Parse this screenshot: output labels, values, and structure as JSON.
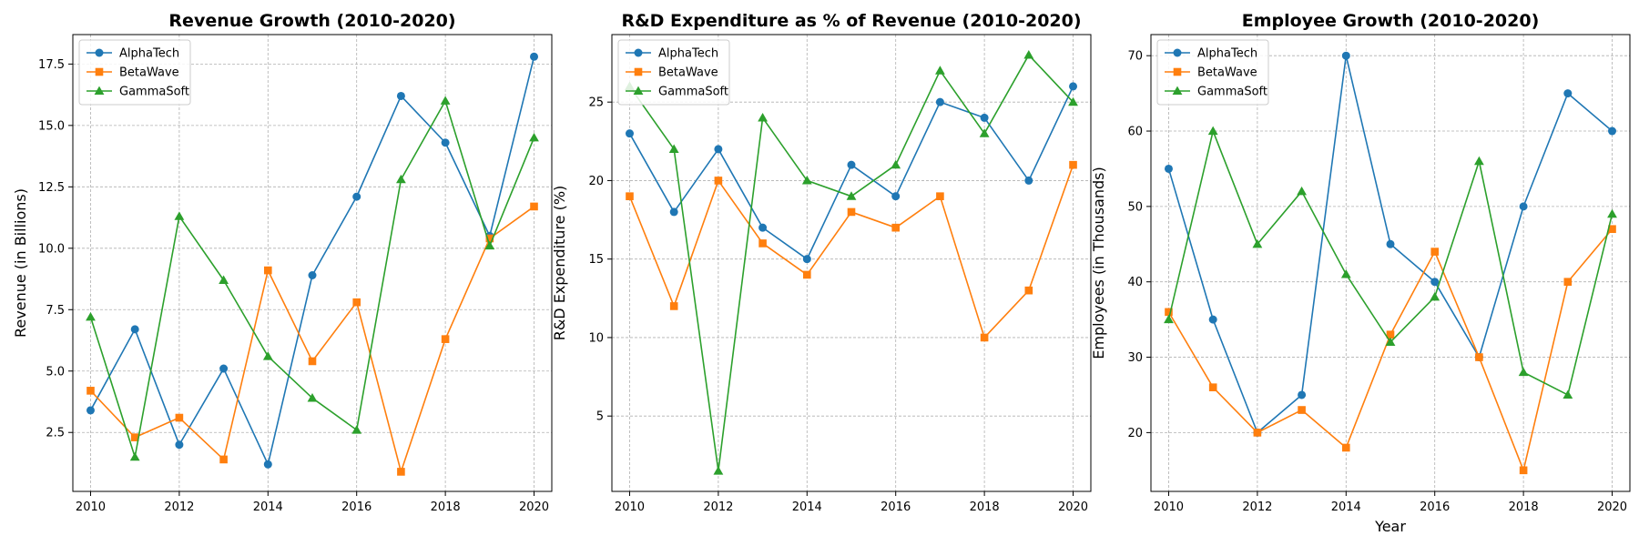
{
  "chart_data": [
    {
      "type": "line",
      "title": "Revenue Growth (2010-2020)",
      "xlabel": "",
      "ylabel": "Revenue (in Billions)",
      "x": [
        2010,
        2011,
        2012,
        2013,
        2014,
        2015,
        2016,
        2017,
        2018,
        2019,
        2020
      ],
      "xlim": [
        2009.6,
        2020.4
      ],
      "ylim": [
        0.1,
        18.7
      ],
      "xticks": [
        2010,
        2012,
        2014,
        2016,
        2018,
        2020
      ],
      "xtick_labels": [
        "2010",
        "2012",
        "2014",
        "2016",
        "2018",
        "2020"
      ],
      "yticks": [
        2.5,
        5,
        7.5,
        10,
        12.5,
        15,
        17.5
      ],
      "ytick_labels": [
        "2.5",
        "5.0",
        "7.5",
        "10.0",
        "12.5",
        "15.0",
        "17.5"
      ],
      "grid": true,
      "legend": "top-left",
      "series": [
        {
          "name": "AlphaTech",
          "values": [
            3.4,
            6.7,
            2.0,
            5.1,
            1.2,
            8.9,
            12.1,
            16.2,
            14.3,
            10.5,
            17.8
          ]
        },
        {
          "name": "BetaWave",
          "values": [
            4.2,
            2.3,
            3.1,
            1.4,
            9.1,
            5.4,
            7.8,
            0.9,
            6.3,
            10.4,
            11.7
          ]
        },
        {
          "name": "GammaSoft",
          "values": [
            7.2,
            1.5,
            11.3,
            8.7,
            5.6,
            3.9,
            2.6,
            12.8,
            16.0,
            10.1,
            14.5
          ]
        }
      ]
    },
    {
      "type": "line",
      "title": "R&D Expenditure as % of Revenue (2010-2020)",
      "xlabel": "",
      "ylabel": "R&D Expenditure (%)",
      "x": [
        2010,
        2011,
        2012,
        2013,
        2014,
        2015,
        2016,
        2017,
        2018,
        2019,
        2020
      ],
      "xlim": [
        2009.6,
        2020.4
      ],
      "ylim": [
        0.2,
        29.3
      ],
      "xticks": [
        2010,
        2012,
        2014,
        2016,
        2018,
        2020
      ],
      "xtick_labels": [
        "2010",
        "2012",
        "2014",
        "2016",
        "2018",
        "2020"
      ],
      "yticks": [
        5,
        10,
        15,
        20,
        25
      ],
      "ytick_labels": [
        "5",
        "10",
        "15",
        "20",
        "25"
      ],
      "grid": true,
      "legend": "top-left",
      "series": [
        {
          "name": "AlphaTech",
          "values": [
            23,
            18,
            22,
            17,
            15,
            21,
            19,
            25,
            24,
            20,
            26
          ]
        },
        {
          "name": "BetaWave",
          "values": [
            19,
            12,
            20,
            16,
            14,
            18,
            17,
            19,
            10,
            13,
            21
          ]
        },
        {
          "name": "GammaSoft",
          "values": [
            26,
            22,
            1.5,
            24,
            20,
            19,
            21,
            27,
            23,
            28,
            25
          ]
        }
      ]
    },
    {
      "type": "line",
      "title": "Employee Growth (2010-2020)",
      "xlabel": "Year",
      "ylabel": "Employees (in Thousands)",
      "x": [
        2010,
        2011,
        2012,
        2013,
        2014,
        2015,
        2016,
        2017,
        2018,
        2019,
        2020
      ],
      "xlim": [
        2009.6,
        2020.4
      ],
      "ylim": [
        12.2,
        72.8
      ],
      "xticks": [
        2010,
        2012,
        2014,
        2016,
        2018,
        2020
      ],
      "xtick_labels": [
        "2010",
        "2012",
        "2014",
        "2016",
        "2018",
        "2020"
      ],
      "yticks": [
        20,
        30,
        40,
        50,
        60,
        70
      ],
      "ytick_labels": [
        "20",
        "30",
        "40",
        "50",
        "60",
        "70"
      ],
      "grid": true,
      "legend": "top-left",
      "series": [
        {
          "name": "AlphaTech",
          "values": [
            55,
            35,
            20,
            25,
            70,
            45,
            40,
            30,
            50,
            65,
            60
          ]
        },
        {
          "name": "BetaWave",
          "values": [
            36,
            26,
            20,
            23,
            18,
            33,
            44,
            30,
            15,
            40,
            47
          ]
        },
        {
          "name": "GammaSoft",
          "values": [
            35,
            60,
            45,
            52,
            41,
            32,
            38,
            56,
            28,
            25,
            49
          ]
        }
      ]
    }
  ],
  "series_style": [
    {
      "color": "#1f77b4",
      "marker": "circle"
    },
    {
      "color": "#ff7f0e",
      "marker": "square"
    },
    {
      "color": "#2ca02c",
      "marker": "triangle"
    }
  ]
}
